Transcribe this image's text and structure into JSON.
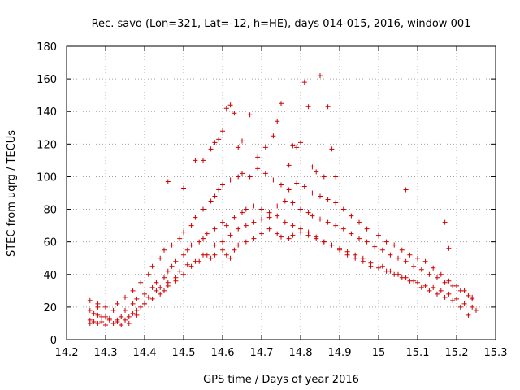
{
  "chart_data": {
    "type": "scatter",
    "title": "Rec. savo (Lon=321, Lat=-12, h=HE), days 014-015, 2016, window 001",
    "xlabel": "GPS time / Days of year 2016",
    "ylabel": "STEC from uqrg / TECUs",
    "xlim": [
      14.2,
      15.3
    ],
    "ylim": [
      0,
      180
    ],
    "xticks": [
      "14.2",
      "14.3",
      "14.4",
      "14.5",
      "14.6",
      "14.7",
      "14.8",
      "14.9",
      "15",
      "15.1",
      "15.2",
      "15.3"
    ],
    "yticks": [
      "0",
      "20",
      "40",
      "60",
      "80",
      "100",
      "120",
      "140",
      "160",
      "180"
    ],
    "grid": true,
    "legend": "none",
    "marker": "plus",
    "color": "#cc0000",
    "series": [
      {
        "x": [
          14.26,
          14.26,
          14.27,
          14.28,
          14.29,
          14.3,
          14.32,
          14.34,
          14.35,
          14.36,
          14.37,
          14.38,
          14.39,
          14.4,
          14.42,
          14.44,
          14.45,
          14.46,
          14.48,
          14.5,
          14.52,
          14.54,
          14.55,
          14.57,
          14.58,
          14.6,
          14.61,
          14.62,
          14.63,
          14.64,
          14.66,
          14.68,
          14.7,
          14.72,
          14.74,
          14.75,
          14.77,
          14.78,
          14.8,
          14.82,
          14.84,
          14.86,
          14.88,
          14.9,
          14.92,
          14.94,
          14.96,
          14.98,
          15.0,
          15.02,
          15.04,
          15.06,
          15.08,
          15.1,
          15.12,
          15.14,
          15.16,
          15.18,
          15.2,
          15.22,
          15.24,
          15.25
        ],
        "y": [
          12,
          10,
          11,
          10,
          11,
          9,
          10,
          9,
          12,
          14,
          16,
          18,
          20,
          22,
          25,
          28,
          30,
          33,
          36,
          40,
          45,
          48,
          52,
          50,
          52,
          55,
          52,
          50,
          55,
          58,
          60,
          62,
          65,
          68,
          65,
          63,
          62,
          64,
          66,
          64,
          62,
          60,
          58,
          55,
          52,
          50,
          48,
          45,
          44,
          42,
          40,
          38,
          36,
          35,
          33,
          32,
          30,
          28,
          25,
          22,
          20,
          18
        ]
      },
      {
        "x": [
          14.26,
          14.27,
          14.28,
          14.3,
          14.31,
          14.33,
          14.34,
          14.35,
          14.37,
          14.38,
          14.4,
          14.42,
          14.43,
          14.45,
          14.46,
          14.47,
          14.48,
          14.5,
          14.51,
          14.52,
          14.54,
          14.55,
          14.56,
          14.58,
          14.6,
          14.61,
          14.63,
          14.65,
          14.66,
          14.68,
          14.7,
          14.72,
          14.74,
          14.76,
          14.78,
          14.8,
          14.82,
          14.83,
          14.85,
          14.87,
          14.89,
          14.91,
          14.93,
          14.95,
          14.97,
          14.99,
          15.01,
          15.03,
          15.05,
          15.07,
          15.09,
          15.11,
          15.13,
          15.15,
          15.17,
          15.19,
          15.21,
          15.23,
          15.24
        ],
        "y": [
          18,
          16,
          15,
          14,
          13,
          12,
          14,
          18,
          22,
          25,
          28,
          32,
          35,
          38,
          42,
          45,
          48,
          52,
          55,
          58,
          60,
          62,
          65,
          68,
          72,
          70,
          75,
          78,
          80,
          82,
          80,
          78,
          82,
          85,
          84,
          80,
          78,
          76,
          74,
          72,
          70,
          68,
          65,
          62,
          60,
          57,
          55,
          52,
          50,
          48,
          45,
          43,
          40,
          38,
          35,
          33,
          30,
          27,
          25
        ]
      },
      {
        "x": [
          14.26,
          14.28,
          14.3,
          14.32,
          14.33,
          14.35,
          14.37,
          14.39,
          14.41,
          14.42,
          14.44,
          14.45,
          14.47,
          14.49,
          14.5,
          14.52,
          14.53,
          14.55,
          14.57,
          14.58,
          14.59,
          14.6,
          14.62,
          14.64,
          14.65,
          14.67,
          14.69,
          14.71,
          14.73,
          14.75,
          14.77,
          14.79,
          14.81,
          14.83,
          14.85,
          14.87,
          14.89,
          14.91,
          14.93,
          14.95,
          14.97,
          15.0,
          15.02,
          15.04,
          15.06,
          15.08,
          15.1,
          15.12,
          15.14,
          15.16,
          15.18,
          15.2,
          15.22,
          15.24
        ],
        "y": [
          24,
          22,
          20,
          18,
          22,
          26,
          30,
          35,
          40,
          45,
          50,
          55,
          58,
          62,
          66,
          70,
          75,
          80,
          85,
          88,
          92,
          95,
          98,
          100,
          102,
          100,
          105,
          102,
          98,
          95,
          92,
          96,
          94,
          90,
          88,
          86,
          84,
          80,
          76,
          72,
          68,
          64,
          60,
          58,
          55,
          52,
          50,
          48,
          44,
          40,
          36,
          33,
          30,
          26
        ]
      },
      {
        "x": [
          14.46,
          14.5,
          14.53,
          14.55,
          14.57,
          14.58,
          14.59,
          14.6,
          14.61,
          14.62,
          14.63,
          14.64,
          14.65,
          14.67,
          14.69,
          14.71,
          14.73,
          14.74,
          14.75,
          14.77,
          14.78,
          14.79,
          14.8,
          14.81,
          14.82,
          14.83,
          14.84,
          14.85,
          14.86,
          14.87,
          14.88,
          14.89,
          15.07,
          15.17,
          15.18
        ],
        "y": [
          97,
          93,
          110,
          110,
          117,
          121,
          123,
          128,
          142,
          144,
          139,
          118,
          122,
          138,
          112,
          118,
          125,
          134,
          145,
          107,
          119,
          118,
          121,
          158,
          143,
          106,
          103,
          162,
          100,
          143,
          117,
          100,
          92,
          72,
          56
        ]
      },
      {
        "x": [
          14.28,
          14.29,
          14.31,
          14.33,
          14.36,
          14.38,
          14.4,
          14.41,
          14.43,
          14.44,
          14.46,
          14.48,
          14.49,
          14.51,
          14.53,
          14.56,
          14.58,
          14.6,
          14.62,
          14.64,
          14.66,
          14.68,
          14.7,
          14.72,
          14.74,
          14.76,
          14.78,
          14.8,
          14.82,
          14.84,
          14.86,
          14.88,
          14.9,
          14.92,
          14.94,
          14.96,
          14.98,
          15.01,
          15.03,
          15.05,
          15.07,
          15.09,
          15.11,
          15.13,
          15.15,
          15.17,
          15.19,
          15.21,
          15.23
        ],
        "y": [
          20,
          14,
          12,
          11,
          10,
          15,
          22,
          26,
          30,
          32,
          35,
          38,
          42,
          46,
          48,
          52,
          58,
          60,
          64,
          68,
          70,
          72,
          74,
          75,
          76,
          72,
          70,
          68,
          66,
          63,
          60,
          58,
          56,
          54,
          52,
          50,
          47,
          45,
          42,
          40,
          38,
          36,
          32,
          30,
          28,
          26,
          24,
          20,
          15
        ]
      }
    ]
  }
}
